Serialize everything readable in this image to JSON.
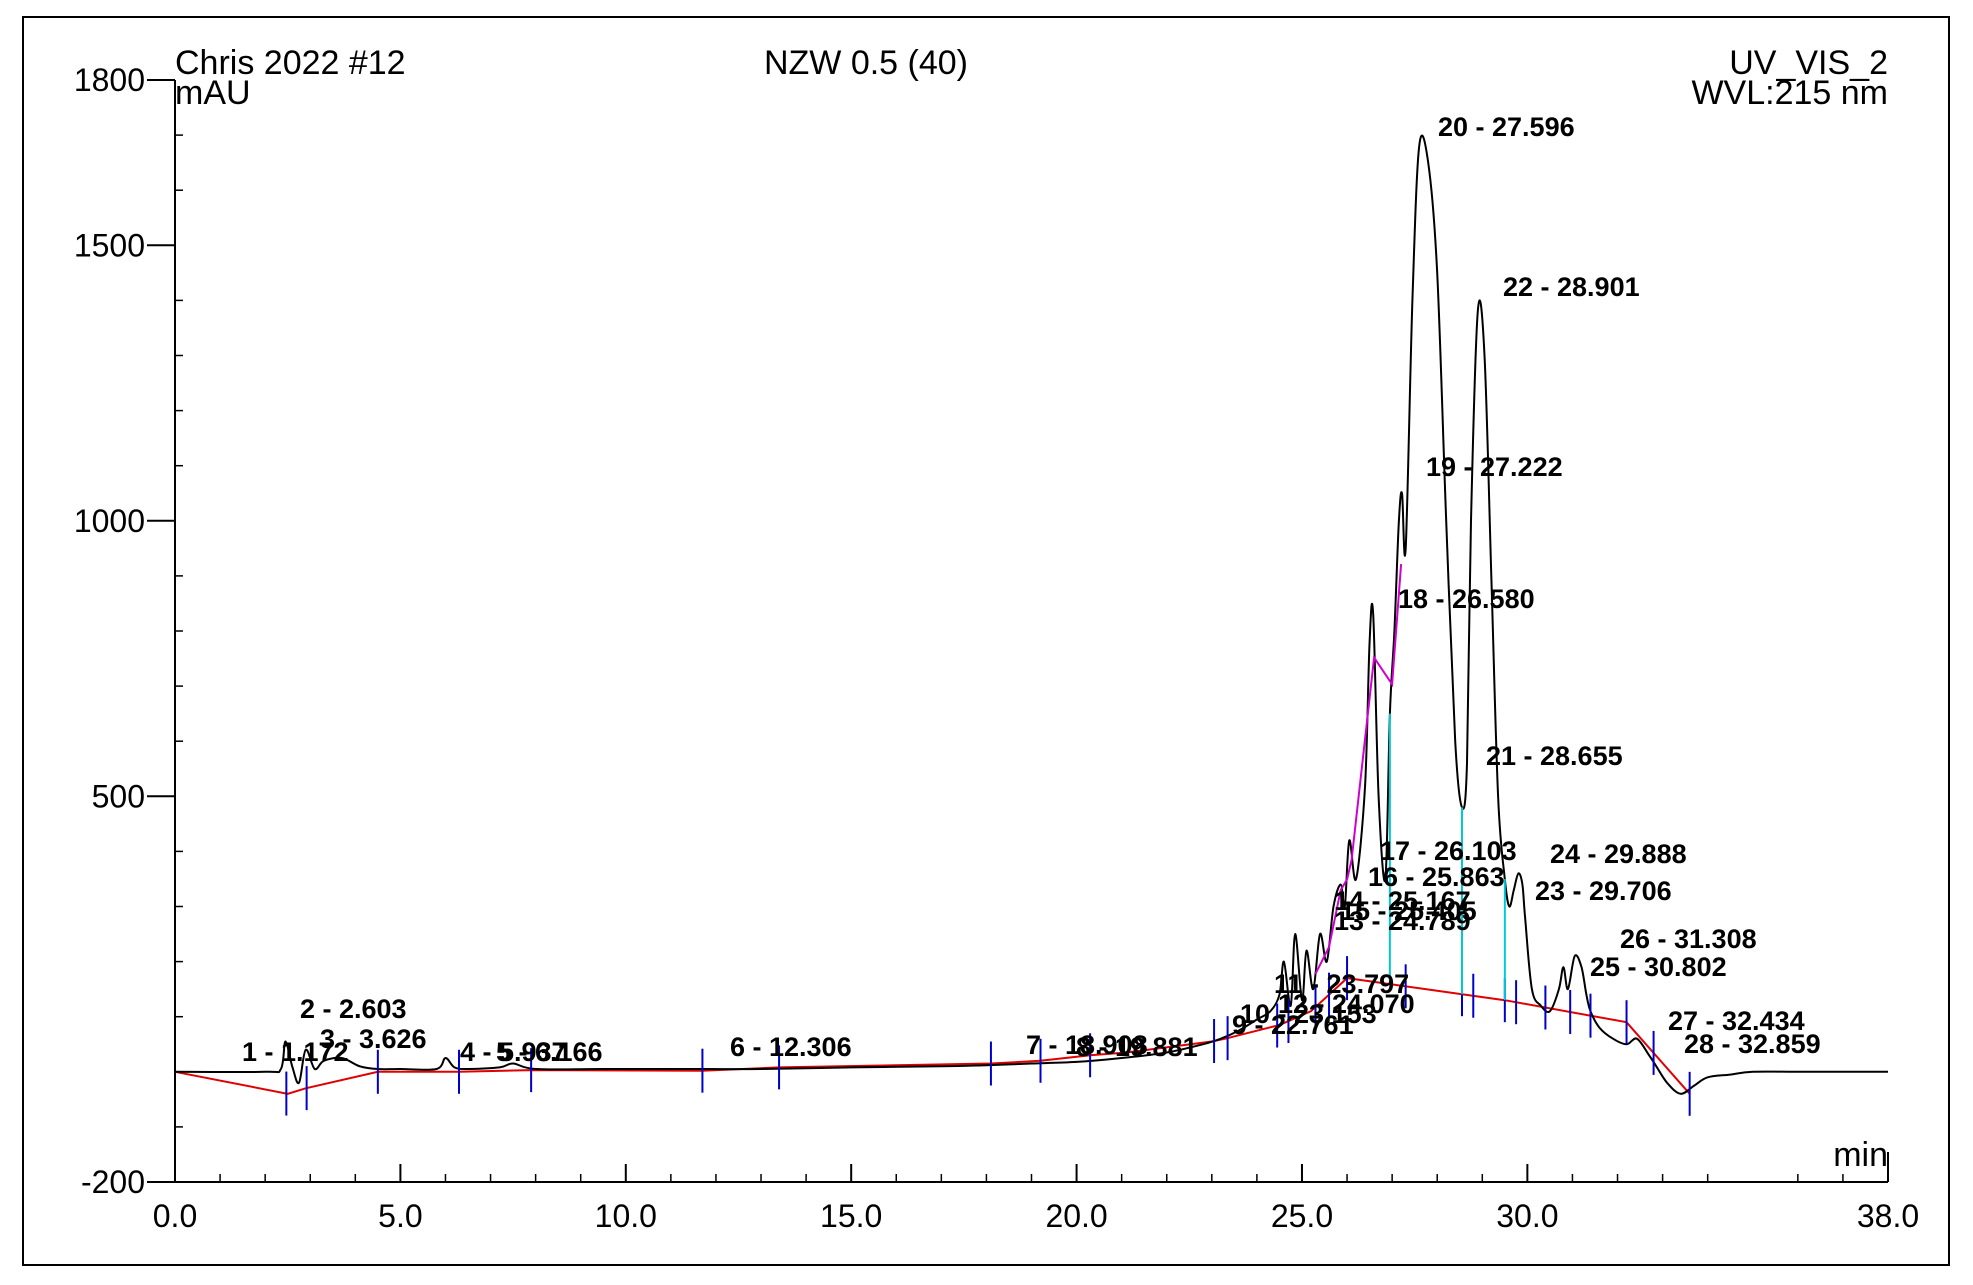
{
  "header": {
    "left": "Chris 2022 #12",
    "center": "NZW 0.5 (40)",
    "right": "UV_VIS_2",
    "wavelength": "WVL:215 nm",
    "y_unit": "mAU",
    "x_unit": "min"
  },
  "colors": {
    "trace": "#000000",
    "baseline": "#e00000",
    "peak_marker": "#0000cc",
    "segment_cyan": "#00c8d8",
    "segment_magenta": "#d000d0"
  },
  "chart_data": {
    "type": "line",
    "title": "NZW 0.5 (40)",
    "xlabel": "min",
    "ylabel": "mAU",
    "xlim": [
      0.0,
      38.0
    ],
    "ylim": [
      -200,
      1800
    ],
    "x_ticks": [
      "0.0",
      "5.0",
      "10.0",
      "15.0",
      "20.0",
      "25.0",
      "30.0",
      "38.0"
    ],
    "x_tick_values": [
      0,
      5,
      10,
      15,
      20,
      25,
      30,
      38
    ],
    "y_ticks": [
      "-200",
      "500",
      "1000",
      "1500",
      "1800"
    ],
    "y_tick_values": [
      -200,
      500,
      1000,
      1500,
      1800
    ],
    "grid": false,
    "series": [
      {
        "x": [
          0.0,
          2.0,
          2.35,
          2.45,
          2.6,
          2.75,
          2.9,
          3.1,
          3.3,
          3.7,
          4.1,
          4.5,
          5.0,
          5.8,
          6.0,
          6.2,
          6.5,
          7.2,
          7.5,
          8.0,
          9.5,
          11.7,
          13.0,
          15.0,
          17.0,
          18.0,
          19.0,
          20.0,
          21.0,
          22.0,
          22.8,
          23.2,
          23.6,
          24.0,
          24.3,
          24.5,
          24.6,
          24.75,
          24.85,
          25.0,
          25.1,
          25.25,
          25.4,
          25.55,
          25.7,
          25.86,
          25.95,
          26.05,
          26.2,
          26.4,
          26.5,
          26.58,
          26.7,
          26.85,
          26.95,
          27.05,
          27.15,
          27.22,
          27.3,
          27.45,
          27.6,
          27.8,
          28.0,
          28.2,
          28.4,
          28.55,
          28.66,
          28.75,
          28.9,
          29.05,
          29.2,
          29.35,
          29.5,
          29.6,
          29.7,
          29.8,
          29.89,
          29.95,
          30.1,
          30.3,
          30.5,
          30.7,
          30.8,
          30.9,
          31.05,
          31.2,
          31.31,
          31.4,
          31.6,
          31.9,
          32.2,
          32.43,
          32.7,
          32.86,
          33.1,
          33.4,
          33.7,
          34.0,
          34.5,
          35.0,
          36.0,
          38.0
        ],
        "y": [
          0,
          0,
          5,
          55,
          10,
          -20,
          40,
          5,
          20,
          25,
          10,
          5,
          5,
          5,
          25,
          8,
          5,
          8,
          15,
          5,
          5,
          5,
          5,
          8,
          10,
          12,
          15,
          18,
          25,
          35,
          50,
          60,
          75,
          95,
          110,
          140,
          200,
          120,
          250,
          130,
          220,
          150,
          250,
          200,
          300,
          340,
          300,
          420,
          350,
          520,
          780,
          830,
          500,
          350,
          650,
          800,
          1000,
          1050,
          950,
          1400,
          1680,
          1650,
          1450,
          1000,
          600,
          480,
          560,
          1000,
          1380,
          1300,
          900,
          500,
          350,
          300,
          330,
          360,
          340,
          280,
          150,
          120,
          110,
          150,
          190,
          150,
          210,
          190,
          140,
          110,
          80,
          60,
          50,
          60,
          30,
          10,
          -20,
          -40,
          -25,
          -10,
          -5,
          0,
          0,
          0
        ]
      }
    ],
    "baseline": {
      "x": [
        0.0,
        2.5,
        2.9,
        4.5,
        6.3,
        7.9,
        11.7,
        13.4,
        18.1,
        19.2,
        20.3,
        21.1,
        23.0,
        23.3,
        24.5,
        25.2,
        26.0,
        29.5,
        32.2,
        33.6
      ],
      "y": [
        0,
        -40,
        -30,
        0,
        0,
        3,
        2,
        8,
        15,
        20,
        30,
        35,
        55,
        60,
        85,
        110,
        170,
        130,
        90,
        -40
      ]
    },
    "peak_markers": [
      2.47,
      2.92,
      4.5,
      6.3,
      7.9,
      11.7,
      13.4,
      18.1,
      19.2,
      20.3,
      23.05,
      23.35,
      24.45,
      24.7,
      25.3,
      25.6,
      26.0,
      27.3,
      28.55,
      28.8,
      29.5,
      29.75,
      30.4,
      30.95,
      31.4,
      32.2,
      32.8,
      33.6
    ],
    "peaks": [
      {
        "label": "1 - 1.172",
        "x": 1.172
      },
      {
        "label": "2 - 2.603",
        "x": 2.603
      },
      {
        "label": "3 - 3.626",
        "x": 3.626
      },
      {
        "label": "4 - 5.937",
        "x": 5.937
      },
      {
        "label": "5 - 6.166",
        "x": 6.166
      },
      {
        "label": "6 - 12.306",
        "x": 12.306
      },
      {
        "label": "7 - 18.908",
        "x": 18.908
      },
      {
        "label": "8 - 19.881",
        "x": 19.881
      },
      {
        "label": "9 - 22.761",
        "x": 22.761
      },
      {
        "label": "10 - 23.153",
        "x": 23.153
      },
      {
        "label": "11 - 23.797",
        "x": 23.797
      },
      {
        "label": "12 - 24.070",
        "x": 24.07
      },
      {
        "label": "13 - 24.789",
        "x": 24.789
      },
      {
        "label": "14 - 25.167",
        "x": 25.167
      },
      {
        "label": "15 - 25.405",
        "x": 25.405
      },
      {
        "label": "16 - 25.863",
        "x": 25.863
      },
      {
        "label": "17 - 26.103",
        "x": 26.103
      },
      {
        "label": "18 - 26.580",
        "x": 26.58
      },
      {
        "label": "19 - 27.222",
        "x": 27.222
      },
      {
        "label": "20 - 27.596",
        "x": 27.596
      },
      {
        "label": "21 - 28.655",
        "x": 28.655
      },
      {
        "label": "22 - 28.901",
        "x": 28.901
      },
      {
        "label": "23 - 29.706",
        "x": 29.706
      },
      {
        "label": "24 - 29.888",
        "x": 29.888
      },
      {
        "label": "25 - 30.802",
        "x": 30.802
      },
      {
        "label": "26 - 31.308",
        "x": 31.308
      },
      {
        "label": "27 - 32.434",
        "x": 32.434
      },
      {
        "label": "28 - 32.859",
        "x": 32.859
      }
    ]
  }
}
